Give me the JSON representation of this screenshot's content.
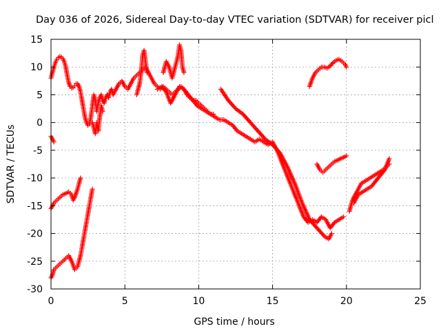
{
  "chart_data": {
    "type": "scatter",
    "title": "Day 036 of 2026, Sidereal Day-to-day VTEC variation (SDTVAR) for receiver picl",
    "xlabel": "GPS time / hours",
    "ylabel": "SDTVAR / TECUs",
    "xlim": [
      0,
      25
    ],
    "ylim": [
      -30,
      15
    ],
    "x_ticks": [
      0,
      5,
      10,
      15,
      20,
      25
    ],
    "y_ticks": [
      -30,
      -25,
      -20,
      -15,
      -10,
      -5,
      0,
      5,
      10,
      15
    ],
    "grid": true,
    "legend": "none",
    "marker": "plus",
    "color": "#ff0000",
    "series": [
      {
        "x": [
          0.0,
          0.1,
          0.2,
          0.3,
          0.4,
          0.5,
          0.6,
          0.7,
          0.8,
          0.9,
          1.0,
          1.1,
          1.2,
          1.3,
          1.4,
          1.5,
          1.6,
          1.7,
          1.8,
          1.9,
          2.0,
          2.1,
          2.2,
          2.3,
          2.4,
          2.5,
          2.6,
          2.7,
          2.8,
          2.9,
          3.0,
          3.1,
          3.2,
          3.3,
          3.4,
          3.5,
          3.6,
          3.7,
          3.8,
          3.9,
          4.0,
          4.1,
          4.2,
          4.4,
          4.6,
          4.8,
          5.0,
          5.2,
          5.4,
          5.6,
          5.8,
          6.0,
          6.2,
          6.4,
          6.6,
          6.8,
          7.0,
          7.2,
          7.4,
          7.6,
          7.8,
          8.0,
          8.2,
          8.4,
          8.6,
          8.8,
          9.0,
          9.2,
          9.4,
          9.6,
          9.8,
          10.0,
          10.2,
          10.4,
          10.6,
          10.8,
          11.0
        ],
        "y": [
          8.0,
          9.0,
          10.0,
          10.8,
          11.4,
          11.7,
          11.9,
          11.8,
          11.5,
          11.0,
          10.0,
          8.5,
          7.2,
          6.5,
          6.2,
          6.3,
          6.6,
          7.0,
          7.0,
          6.5,
          5.5,
          4.0,
          2.5,
          1.0,
          0.0,
          -0.5,
          -0.3,
          1.0,
          3.0,
          5.0,
          4.0,
          2.0,
          3.5,
          4.5,
          5.0,
          4.0,
          3.5,
          4.5,
          5.0,
          4.5,
          5.5,
          6.0,
          5.0,
          6.0,
          7.0,
          7.5,
          6.5,
          6.0,
          7.0,
          8.0,
          8.5,
          9.0,
          9.5,
          10.0,
          9.0,
          8.0,
          7.0,
          6.5,
          6.0,
          6.5,
          6.0,
          5.5,
          5.0,
          5.5,
          6.0,
          6.5,
          6.0,
          5.0,
          4.5,
          4.0,
          4.0,
          3.5,
          3.0,
          2.5,
          2.0,
          1.5,
          1.5
        ]
      },
      {
        "x": [
          2.8,
          2.9,
          3.0,
          3.1,
          3.2,
          3.3,
          3.4,
          3.5
        ],
        "y": [
          0.0,
          -1.0,
          -2.0,
          0.0,
          -1.5,
          1.0,
          3.0,
          2.0
        ]
      },
      {
        "x": [
          5.8,
          6.0,
          6.1,
          6.2,
          6.3,
          6.4,
          6.5
        ],
        "y": [
          5.0,
          7.0,
          9.0,
          12.0,
          13.0,
          11.0,
          9.0
        ]
      },
      {
        "x": [
          7.6,
          7.8,
          8.0,
          8.2,
          8.4,
          8.6,
          8.7,
          8.8,
          8.9,
          9.0
        ],
        "y": [
          9.0,
          11.0,
          10.0,
          8.0,
          10.0,
          12.0,
          14.0,
          13.0,
          10.0,
          9.0
        ]
      },
      {
        "x": [
          7.2,
          7.5,
          7.8,
          8.1,
          8.4,
          8.7,
          9.0,
          9.3,
          9.6,
          9.9,
          10.2,
          10.5,
          10.8,
          11.1,
          11.4,
          11.7,
          12.0,
          12.3,
          12.6,
          12.9,
          13.2,
          13.5,
          13.8,
          14.1,
          14.4,
          14.7,
          15.0,
          15.3,
          15.6,
          15.9,
          16.2,
          16.5,
          16.8,
          17.1,
          17.4,
          17.7,
          18.0,
          18.3,
          18.6,
          18.9,
          19.2,
          19.5,
          19.8
        ],
        "y": [
          6.0,
          6.5,
          5.5,
          3.5,
          5.0,
          6.5,
          6.0,
          5.0,
          4.0,
          3.0,
          2.5,
          2.0,
          1.5,
          1.0,
          0.5,
          0.5,
          0.0,
          -0.5,
          -1.5,
          -2.0,
          -2.5,
          -3.0,
          -3.5,
          -3.0,
          -3.5,
          -4.0,
          -3.5,
          -5.0,
          -7.0,
          -9.0,
          -11.0,
          -13.0,
          -15.0,
          -17.0,
          -18.0,
          -17.5,
          -18.0,
          -17.0,
          -17.5,
          -19.0,
          -18.0,
          -17.5,
          -17.0
        ]
      },
      {
        "x": [
          11.5,
          12.0,
          12.5,
          13.0,
          13.5,
          14.0,
          14.5,
          15.0,
          15.5,
          16.0,
          16.5,
          17.0,
          17.5,
          18.0,
          18.5,
          18.8,
          19.0
        ],
        "y": [
          6.0,
          4.0,
          2.5,
          1.5,
          0.0,
          -1.5,
          -3.0,
          -4.0,
          -5.5,
          -8.0,
          -11.0,
          -14.5,
          -17.5,
          -19.0,
          -20.5,
          -21.0,
          -20.0
        ]
      },
      {
        "x": [
          17.5,
          17.7,
          17.9,
          18.1,
          18.3,
          18.5,
          18.7,
          18.9,
          19.1,
          19.3,
          19.5,
          19.7,
          19.9,
          20.0
        ],
        "y": [
          6.5,
          8.0,
          9.0,
          9.5,
          10.0,
          10.0,
          9.8,
          10.2,
          10.8,
          11.2,
          11.4,
          11.0,
          10.5,
          10.0
        ]
      },
      {
        "x": [
          18.0,
          18.2,
          18.4,
          18.6,
          18.8,
          19.0,
          19.2,
          19.4,
          19.6,
          19.8,
          20.0
        ],
        "y": [
          -7.5,
          -8.5,
          -9.0,
          -8.5,
          -8.0,
          -7.5,
          -7.0,
          -6.8,
          -6.5,
          -6.3,
          -6.0
        ]
      },
      {
        "x": [
          20.2,
          20.4,
          20.6,
          20.8,
          21.0,
          21.3,
          21.6,
          21.9,
          22.2,
          22.5,
          22.7,
          22.9
        ],
        "y": [
          -16.0,
          -14.0,
          -13.0,
          -12.0,
          -11.0,
          -10.5,
          -10.0,
          -9.5,
          -9.0,
          -8.5,
          -8.0,
          -7.5
        ]
      },
      {
        "x": [
          20.5,
          20.8,
          21.1,
          21.4,
          21.7,
          22.0,
          22.3,
          22.6,
          22.9
        ],
        "y": [
          -14.5,
          -13.0,
          -12.5,
          -12.0,
          -11.5,
          -10.5,
          -9.5,
          -8.5,
          -6.5
        ]
      },
      {
        "x": [
          0.0,
          0.1,
          0.2
        ],
        "y": [
          -2.5,
          -3.0,
          -3.5
        ]
      },
      {
        "x": [
          0.0,
          0.2,
          0.4,
          0.6,
          0.8,
          1.0,
          1.2,
          1.4,
          1.5,
          1.6,
          1.8,
          1.9,
          2.0
        ],
        "y": [
          -15.5,
          -14.5,
          -14.0,
          -13.5,
          -13.0,
          -12.8,
          -12.5,
          -13.0,
          -14.0,
          -13.5,
          -12.0,
          -11.0,
          -10.0
        ]
      },
      {
        "x": [
          0.0,
          0.1,
          0.2,
          0.4,
          0.6,
          0.8,
          1.0,
          1.2,
          1.4,
          1.6,
          1.8,
          2.0,
          2.2,
          2.4,
          2.6,
          2.8
        ],
        "y": [
          -28.0,
          -27.5,
          -26.5,
          -26.0,
          -25.5,
          -25.0,
          -24.5,
          -24.0,
          -25.0,
          -26.5,
          -26.0,
          -24.0,
          -21.0,
          -18.0,
          -15.0,
          -12.0
        ]
      }
    ]
  }
}
